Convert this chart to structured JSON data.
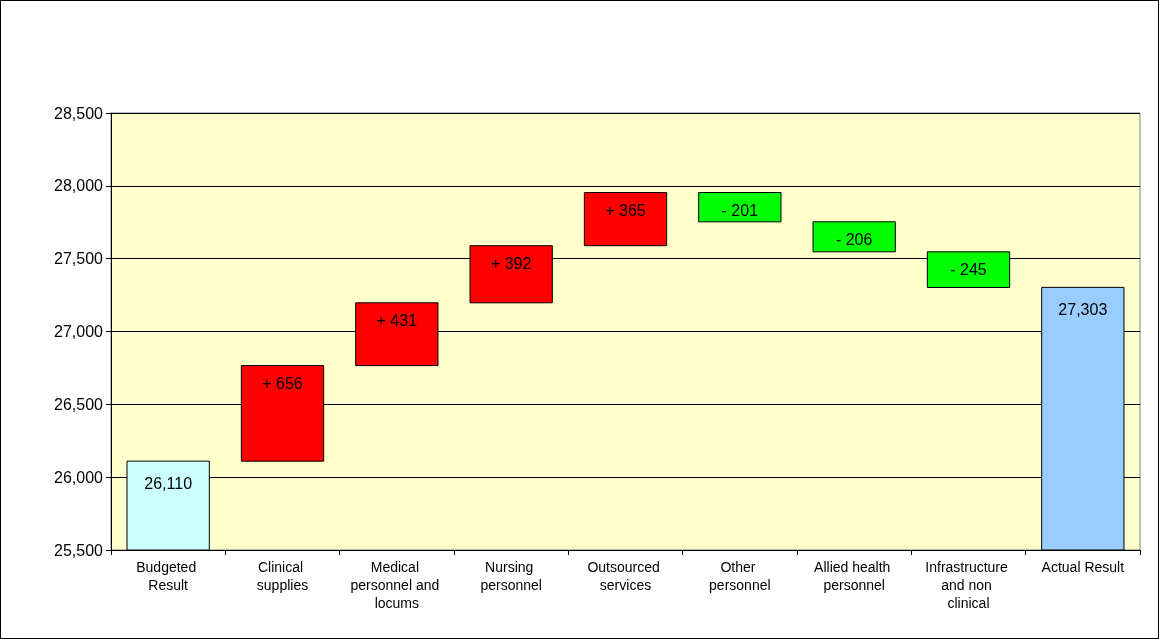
{
  "chart_data": {
    "type": "bar",
    "categories": [
      "Budgeted Result",
      "Clinical supplies",
      "Medical personnel and locums",
      "Nursing personnel",
      "Outsourced services",
      "Other personnel",
      "Allied health personnel",
      "Infrastructure and non clinical",
      "Actual Result"
    ],
    "values": [
      26110,
      656,
      431,
      392,
      365,
      -201,
      -206,
      -245,
      27303
    ],
    "base": [
      null,
      26110,
      26766,
      27197,
      27589,
      27954,
      27753,
      27547,
      null
    ],
    "colors": [
      "#ccffff",
      "#ff0000",
      "#ff0000",
      "#ff0000",
      "#ff0000",
      "#00ff00",
      "#00ff00",
      "#00ff00",
      "#99ccff"
    ],
    "value_labels": [
      "26,110",
      "+ 656",
      "+ 431",
      "+ 392",
      "+ 365",
      "- 201",
      "- 206",
      "- 245",
      "27,303"
    ],
    "ylim": [
      25500,
      28500
    ],
    "yticks": [
      {
        "value": 25500,
        "label": "25,500"
      },
      {
        "value": 26000,
        "label": "26,000"
      },
      {
        "value": 26500,
        "label": "26,500"
      },
      {
        "value": 27000,
        "label": "27,000"
      },
      {
        "value": 27500,
        "label": "27,500"
      },
      {
        "value": 28000,
        "label": "28,000"
      },
      {
        "value": 28500,
        "label": "28,500"
      }
    ],
    "grid": "y"
  }
}
